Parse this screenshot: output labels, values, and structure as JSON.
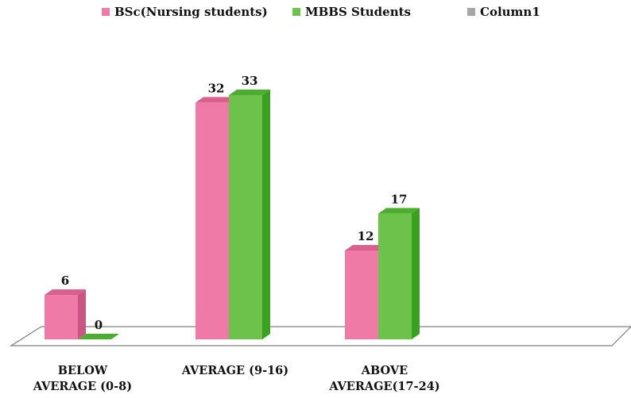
{
  "chart_data": {
    "type": "bar",
    "categories": [
      [
        "BELOW",
        "AVERAGE (0-8)"
      ],
      [
        "AVERAGE (9-16)"
      ],
      [
        "ABOVE",
        "AVERAGE(17-24)"
      ]
    ],
    "series": [
      {
        "name": "BSc(Nursing students)",
        "values": [
          6,
          32,
          12
        ],
        "color": "#ef7aa7",
        "top_color": "#d9608d",
        "side_color": "#c95582",
        "value_labels": [
          "6",
          "32",
          "12"
        ]
      },
      {
        "name": "MBBS Students",
        "values": [
          0,
          33,
          17
        ],
        "color": "#6cc24a",
        "top_color": "#4cae2f",
        "side_color": "#3aa022",
        "value_labels": [
          "0",
          "33",
          "17"
        ]
      },
      {
        "name": "Column1",
        "values": [
          null,
          null,
          null
        ],
        "color": "#a6a6a6",
        "top_color": "#8f8f8f",
        "side_color": "#7f7f7f",
        "value_labels": []
      }
    ],
    "ylim": [
      0,
      33
    ],
    "grid": false,
    "legend_position": "top"
  }
}
